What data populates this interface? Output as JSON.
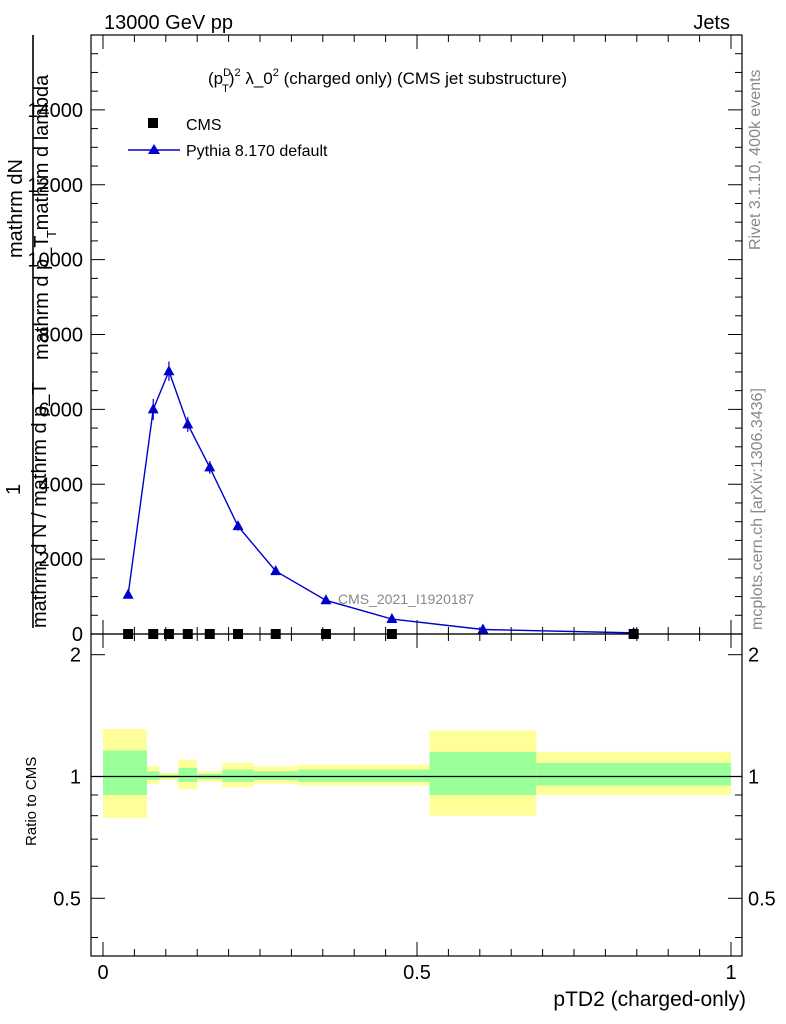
{
  "header": {
    "left": "13000 GeV pp",
    "right": "Jets"
  },
  "side": {
    "rivet": "Rivet 3.1.10,  400k events",
    "mcplots": "mcplots.cern.ch [arXiv:1306.3436]"
  },
  "chart_data": [
    {
      "type": "line",
      "title": "(p_T^D)^2 λ_0^2 (charged only) (CMS jet substructure)",
      "title_parts": {
        "p": "(p",
        "sup1": "D",
        "sub1": "T",
        "close": ")",
        "sup2": "2",
        "lambda": " λ_0",
        "sup3": "2",
        "rest": " (charged only) (CMS jet substructure)"
      },
      "ylabel_top": "mathrm dN",
      "ylabel_top2": "mathrm d p_T mathrm d lambda",
      "ylabel_bottom": "1",
      "ylabel_bottom2": "mathrm d N / mathrm d p_T",
      "ylabel_sub": "T",
      "ylim": [
        0,
        16000
      ],
      "xlim": [
        -0.02,
        1.02
      ],
      "yticks": [
        0,
        2000,
        4000,
        6000,
        8000,
        10000,
        12000,
        14000
      ],
      "ytick_labels": [
        "0",
        "2000",
        "4000",
        "6000",
        "8000",
        "10000",
        "12000",
        "14000"
      ],
      "analysis_label": "CMS_2021_I1920187",
      "legend": [
        {
          "name": "CMS",
          "marker": "square",
          "color": "#000000"
        },
        {
          "name": "Pythia 8.170 default",
          "marker": "triangle",
          "color": "#0000cc"
        }
      ],
      "series": [
        {
          "name": "CMS",
          "x": [
            0.04,
            0.08,
            0.105,
            0.135,
            0.17,
            0.215,
            0.275,
            0.355,
            0.46,
            0.845
          ],
          "values": [
            0,
            0,
            0,
            0,
            0,
            0,
            0,
            0,
            0,
            0
          ]
        },
        {
          "name": "Pythia 8.170 default",
          "x": [
            0.04,
            0.08,
            0.105,
            0.135,
            0.17,
            0.215,
            0.275,
            0.355,
            0.46,
            0.605,
            0.845
          ],
          "values": [
            1050,
            6000,
            7020,
            5600,
            4450,
            2880,
            1680,
            900,
            400,
            120,
            30
          ],
          "errors": [
            60,
            280,
            260,
            200,
            170,
            120,
            60,
            40,
            25,
            10,
            5
          ]
        }
      ]
    },
    {
      "type": "area",
      "ylabel": "Ratio to CMS",
      "xlabel": "pTD2 (charged-only)",
      "ylim": [
        0.36,
        2.25
      ],
      "yticks": [
        0.5,
        1,
        2
      ],
      "ytick_labels": [
        "0.5",
        "1",
        "2"
      ],
      "xticks": [
        0,
        0.5,
        1
      ],
      "xtick_labels": [
        "0",
        "0.5",
        "1"
      ],
      "bands": [
        {
          "x0": 0.0,
          "x1": 0.07,
          "yellow": [
            0.79,
            1.31
          ],
          "green": [
            0.9,
            1.16
          ]
        },
        {
          "x0": 0.07,
          "x1": 0.09,
          "yellow": [
            0.96,
            1.06
          ],
          "green": [
            0.98,
            1.03
          ]
        },
        {
          "x0": 0.09,
          "x1": 0.12,
          "yellow": [
            0.98,
            1.02
          ],
          "green": [
            0.99,
            1.01
          ]
        },
        {
          "x0": 0.12,
          "x1": 0.15,
          "yellow": [
            0.93,
            1.1
          ],
          "green": [
            0.97,
            1.05
          ]
        },
        {
          "x0": 0.15,
          "x1": 0.19,
          "yellow": [
            0.97,
            1.03
          ],
          "green": [
            0.985,
            1.015
          ]
        },
        {
          "x0": 0.19,
          "x1": 0.24,
          "yellow": [
            0.94,
            1.08
          ],
          "green": [
            0.97,
            1.04
          ]
        },
        {
          "x0": 0.24,
          "x1": 0.31,
          "yellow": [
            0.96,
            1.06
          ],
          "green": [
            0.98,
            1.03
          ]
        },
        {
          "x0": 0.31,
          "x1": 0.52,
          "yellow": [
            0.95,
            1.07
          ],
          "green": [
            0.97,
            1.04
          ]
        },
        {
          "x0": 0.52,
          "x1": 0.69,
          "yellow": [
            0.8,
            1.3
          ],
          "green": [
            0.9,
            1.15
          ]
        },
        {
          "x0": 0.69,
          "x1": 1.0,
          "yellow": [
            0.9,
            1.15
          ],
          "green": [
            0.95,
            1.08
          ]
        }
      ]
    }
  ]
}
